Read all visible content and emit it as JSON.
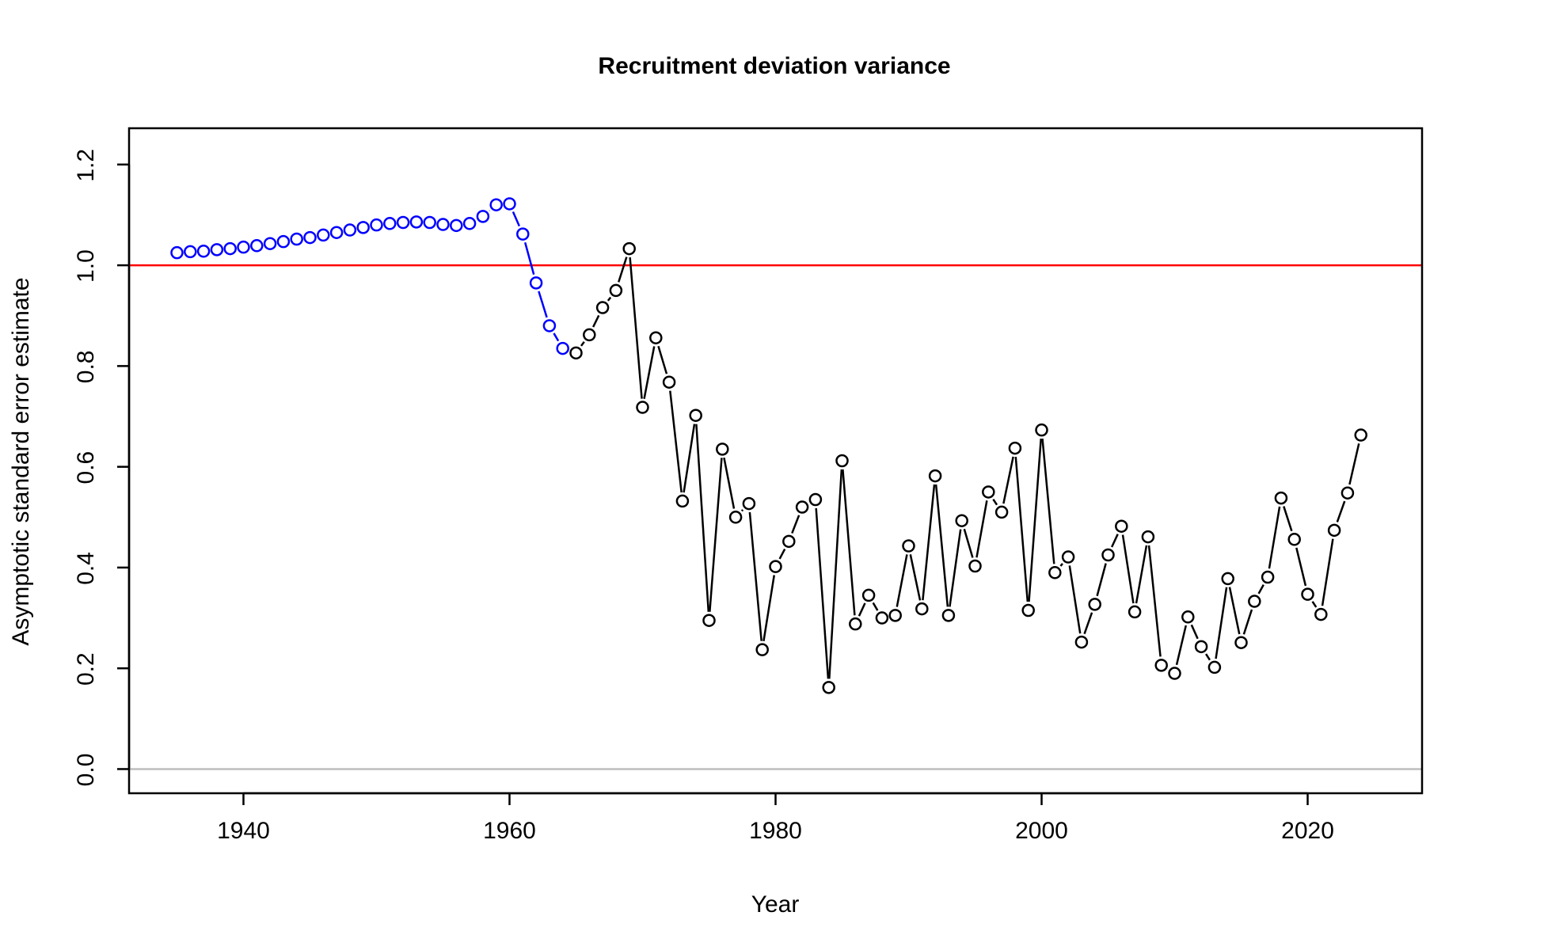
{
  "chart_data": {
    "type": "line",
    "title": "Recruitment deviation variance",
    "xlabel": "Year",
    "ylabel": "Asymptotic standard error estimate",
    "xlim": [
      1931.4,
      2028.6
    ],
    "ylim": [
      -0.048,
      1.272
    ],
    "x_ticks": [
      1940,
      1960,
      1980,
      2000,
      2020
    ],
    "y_ticks": [
      0.0,
      0.2,
      0.4,
      0.6,
      0.8,
      1.0,
      1.2
    ],
    "reference_lines": [
      {
        "y": 1.0,
        "color": "#ff0000"
      },
      {
        "y": 0.0,
        "color": "#bebebe"
      }
    ],
    "grid": false,
    "series": [
      {
        "color": "#0000ff",
        "x": [
          1935,
          1936,
          1937,
          1938,
          1939,
          1940,
          1941,
          1942,
          1943,
          1944,
          1945,
          1946,
          1947,
          1948,
          1949,
          1950,
          1951,
          1952,
          1953,
          1954,
          1955,
          1956,
          1957,
          1958,
          1959,
          1960,
          1961,
          1962,
          1963,
          1964
        ],
        "y": [
          1.025,
          1.027,
          1.028,
          1.031,
          1.033,
          1.036,
          1.039,
          1.043,
          1.047,
          1.052,
          1.055,
          1.06,
          1.065,
          1.07,
          1.075,
          1.08,
          1.083,
          1.085,
          1.086,
          1.085,
          1.081,
          1.079,
          1.083,
          1.097,
          1.12,
          1.122,
          1.062,
          0.965,
          0.88,
          0.835
        ]
      },
      {
        "color": "#000000",
        "x": [
          1965,
          1966,
          1967,
          1968,
          1969,
          1970,
          1971,
          1972,
          1973,
          1974,
          1975,
          1976,
          1977,
          1978,
          1979,
          1980,
          1981,
          1982,
          1983,
          1984,
          1985,
          1986,
          1987,
          1988,
          1989,
          1990,
          1991,
          1992,
          1993,
          1994,
          1995,
          1996,
          1997,
          1998,
          1999,
          2000,
          2001,
          2002,
          2003,
          2004,
          2005,
          2006,
          2007,
          2008,
          2009,
          2010,
          2011,
          2012,
          2013,
          2014,
          2015,
          2016,
          2017,
          2018,
          2019,
          2020,
          2021,
          2022,
          2023,
          2024
        ],
        "y": [
          0.826,
          0.862,
          0.916,
          0.95,
          1.033,
          0.718,
          0.856,
          0.768,
          0.532,
          0.702,
          0.295,
          0.635,
          0.5,
          0.527,
          0.237,
          0.402,
          0.452,
          0.52,
          0.535,
          0.162,
          0.612,
          0.288,
          0.345,
          0.3,
          0.305,
          0.443,
          0.318,
          0.582,
          0.305,
          0.493,
          0.403,
          0.55,
          0.51,
          0.637,
          0.315,
          0.673,
          0.39,
          0.421,
          0.252,
          0.327,
          0.425,
          0.482,
          0.312,
          0.461,
          0.206,
          0.19,
          0.302,
          0.243,
          0.202,
          0.378,
          0.251,
          0.333,
          0.381,
          0.538,
          0.456,
          0.347,
          0.307,
          0.474,
          0.548,
          0.663
        ]
      }
    ]
  }
}
